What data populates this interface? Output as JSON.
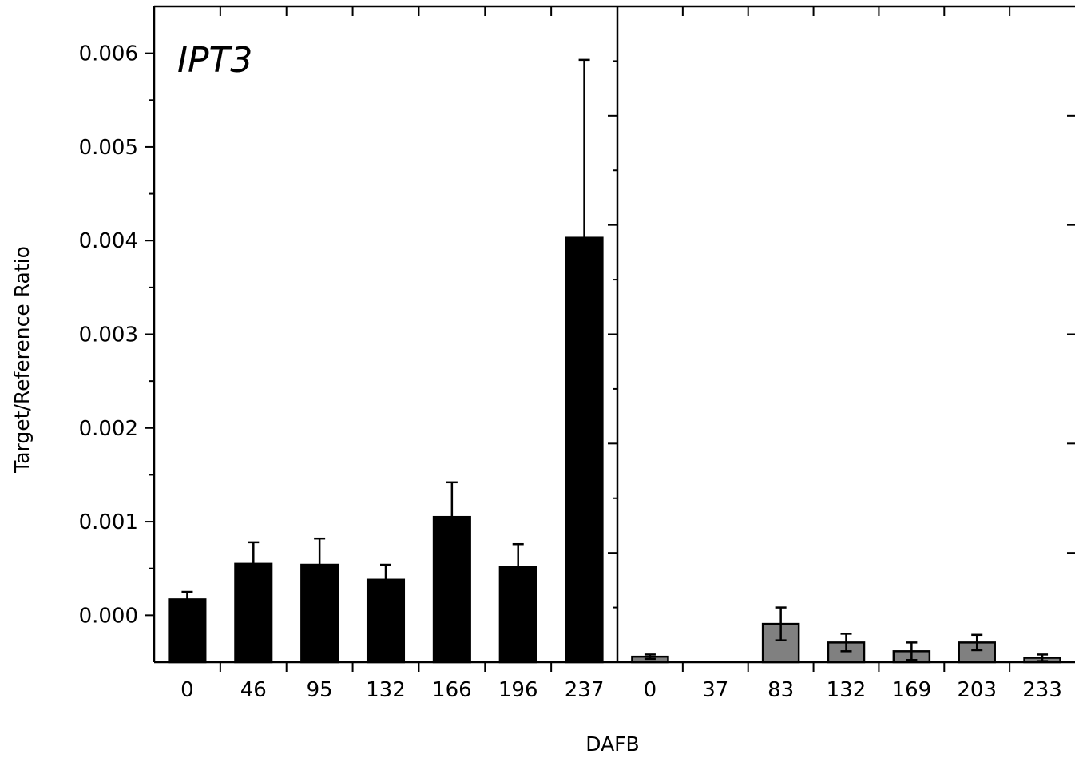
{
  "chart_data": {
    "type": "bar",
    "xlabel": "DAFB",
    "ylabel": "Target/Reference Ratio",
    "panels": [
      {
        "title": "IPT3",
        "color": "#000000",
        "categories": [
          "0",
          "46",
          "95",
          "132",
          "166",
          "196",
          "237"
        ],
        "values": [
          0.00017,
          0.00055,
          0.00054,
          0.00038,
          0.00105,
          0.00052,
          0.00403
        ],
        "errors": [
          8e-05,
          0.00023,
          0.00028,
          0.00016,
          0.00037,
          0.00024,
          0.0019
        ],
        "ylim": [
          -0.0005,
          0.0065
        ],
        "yticks": [
          "0.000",
          "0.001",
          "0.002",
          "0.003",
          "0.004",
          "0.005",
          "0.006"
        ],
        "ytick_values": [
          0,
          0.001,
          0.002,
          0.003,
          0.004,
          0.005,
          0.006
        ]
      },
      {
        "title": "",
        "color": "#808080",
        "categories": [
          "0",
          "37",
          "83",
          "132",
          "169",
          "203",
          "233"
        ],
        "values": [
          5e-05,
          0,
          0.00035,
          0.00018,
          0.0001,
          0.00018,
          4e-05
        ],
        "errors": [
          2e-05,
          0,
          0.00015,
          8e-05,
          8e-05,
          7e-05,
          3e-05
        ],
        "ylim": [
          0,
          0.006
        ],
        "yticks": [],
        "ytick_values": []
      }
    ],
    "grid": false,
    "legend": "none"
  }
}
